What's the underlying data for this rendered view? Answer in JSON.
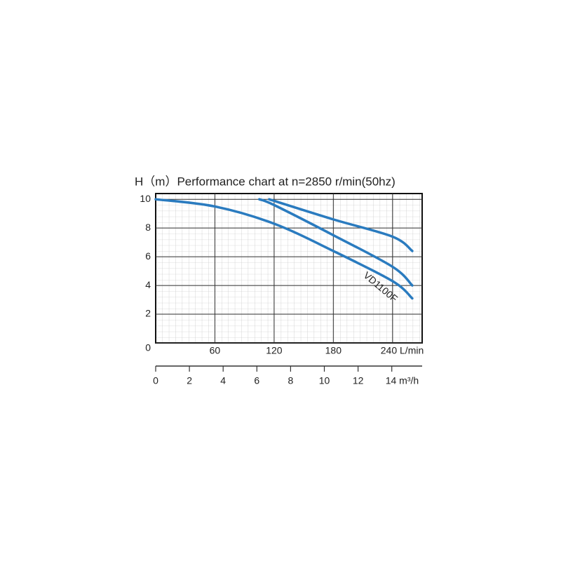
{
  "chart_data": {
    "type": "line",
    "title": "H（m）Performance chart at n=2850 r/min(50hz)",
    "xlim": [
      0,
      270
    ],
    "xticks": [
      60,
      120,
      180,
      {
        "value": 240,
        "label": "240 L/min"
      }
    ],
    "ylim": [
      0,
      10.4
    ],
    "yticks": [
      0,
      2,
      4,
      6,
      8,
      10
    ],
    "x2lim": [
      0,
      15.8
    ],
    "x2ticks": [
      0,
      2,
      4,
      6,
      8,
      10,
      12,
      {
        "value": 14,
        "label": "14 m³/h"
      }
    ],
    "grid": true,
    "annotation": "VD1100F",
    "series": [
      {
        "color": "#2a7bbf",
        "x": [
          0,
          60,
          120,
          180,
          240,
          260
        ],
        "values": [
          10,
          9.5,
          8.3,
          6.4,
          4.3,
          3.1
        ]
      },
      {
        "color": "#2a7bbf",
        "x": [
          105,
          120,
          180,
          240,
          260
        ],
        "values": [
          10,
          9.6,
          7.5,
          5.3,
          4.0
        ]
      },
      {
        "color": "#2a7bbf",
        "x": [
          115,
          180,
          240,
          260
        ],
        "values": [
          10,
          8.6,
          7.4,
          6.4
        ]
      }
    ]
  }
}
